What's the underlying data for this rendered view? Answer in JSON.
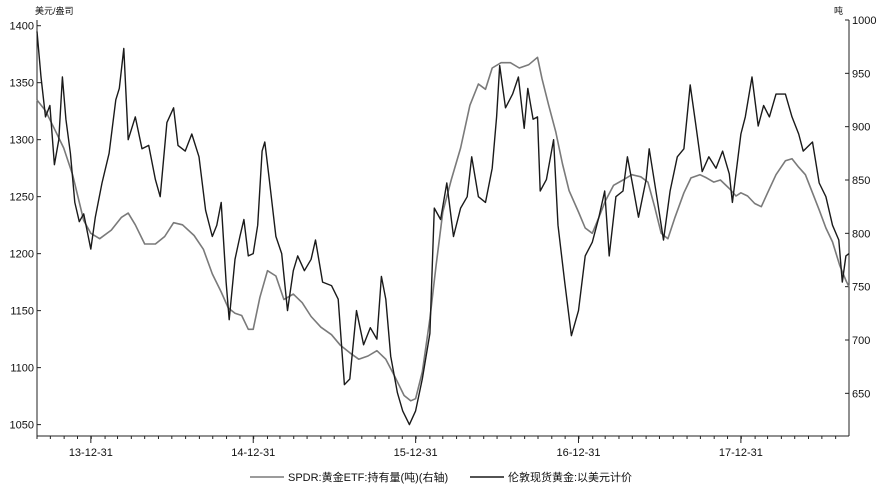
{
  "chart_data": {
    "type": "line",
    "left_unit": "美元/盎司",
    "right_unit": "吨",
    "left_ylim": [
      1040,
      1405
    ],
    "right_ylim": [
      610,
      1000
    ],
    "left_ticks": [
      1050,
      1100,
      1150,
      1200,
      1250,
      1300,
      1350,
      1400
    ],
    "right_ticks": [
      650,
      700,
      750,
      800,
      850,
      900,
      950,
      1000
    ],
    "x_ticks": [
      "13-12-31",
      "14-12-31",
      "15-12-31",
      "16-12-31",
      "17-12-31"
    ],
    "x_tick_positions": [
      "2013-12-31",
      "2014-12-31",
      "2015-12-31",
      "2016-12-31",
      "2017-12-31"
    ],
    "x_range": [
      "2013-09-01",
      "2018-08-31"
    ],
    "grid": false,
    "legend_placement": "bottom",
    "series": [
      {
        "name": "SPDR:黄金ETF:持有量(吨)(右轴)",
        "axis": "right",
        "color": "#7a7a7a",
        "points": [
          [
            "2013-09-01",
            925
          ],
          [
            "2013-09-20",
            915
          ],
          [
            "2013-10-10",
            898
          ],
          [
            "2013-10-31",
            880
          ],
          [
            "2013-11-20",
            855
          ],
          [
            "2013-12-15",
            812
          ],
          [
            "2013-12-31",
            800
          ],
          [
            "2014-01-20",
            795
          ],
          [
            "2014-02-15",
            803
          ],
          [
            "2014-03-10",
            815
          ],
          [
            "2014-03-25",
            819
          ],
          [
            "2014-04-10",
            808
          ],
          [
            "2014-05-01",
            790
          ],
          [
            "2014-05-25",
            790
          ],
          [
            "2014-06-15",
            797
          ],
          [
            "2014-07-05",
            810
          ],
          [
            "2014-07-25",
            808
          ],
          [
            "2014-08-20",
            798
          ],
          [
            "2014-09-10",
            785
          ],
          [
            "2014-09-30",
            762
          ],
          [
            "2014-10-20",
            745
          ],
          [
            "2014-11-05",
            730
          ],
          [
            "2014-11-20",
            725
          ],
          [
            "2014-12-05",
            723
          ],
          [
            "2014-12-20",
            710
          ],
          [
            "2014-12-31",
            710
          ],
          [
            "2015-01-15",
            740
          ],
          [
            "2015-02-01",
            765
          ],
          [
            "2015-02-20",
            760
          ],
          [
            "2015-03-10",
            738
          ],
          [
            "2015-03-31",
            743
          ],
          [
            "2015-04-20",
            735
          ],
          [
            "2015-05-10",
            722
          ],
          [
            "2015-06-01",
            712
          ],
          [
            "2015-06-25",
            705
          ],
          [
            "2015-07-15",
            695
          ],
          [
            "2015-08-05",
            688
          ],
          [
            "2015-08-25",
            682
          ],
          [
            "2015-09-15",
            685
          ],
          [
            "2015-10-05",
            690
          ],
          [
            "2015-10-25",
            682
          ],
          [
            "2015-11-15",
            665
          ],
          [
            "2015-12-05",
            648
          ],
          [
            "2015-12-20",
            643
          ],
          [
            "2015-12-31",
            645
          ],
          [
            "2016-01-15",
            670
          ],
          [
            "2016-02-01",
            720
          ],
          [
            "2016-02-15",
            770
          ],
          [
            "2016-03-01",
            820
          ],
          [
            "2016-03-20",
            850
          ],
          [
            "2016-04-10",
            880
          ],
          [
            "2016-05-01",
            920
          ],
          [
            "2016-05-20",
            940
          ],
          [
            "2016-06-05",
            935
          ],
          [
            "2016-06-20",
            955
          ],
          [
            "2016-07-10",
            960
          ],
          [
            "2016-07-31",
            960
          ],
          [
            "2016-08-20",
            955
          ],
          [
            "2016-09-10",
            958
          ],
          [
            "2016-09-30",
            965
          ],
          [
            "2016-10-10",
            945
          ],
          [
            "2016-10-25",
            920
          ],
          [
            "2016-11-10",
            895
          ],
          [
            "2016-11-25",
            865
          ],
          [
            "2016-12-10",
            840
          ],
          [
            "2016-12-31",
            820
          ],
          [
            "2017-01-15",
            805
          ],
          [
            "2017-01-31",
            800
          ],
          [
            "2017-02-15",
            815
          ],
          [
            "2017-03-01",
            830
          ],
          [
            "2017-03-20",
            845
          ],
          [
            "2017-04-10",
            850
          ],
          [
            "2017-04-30",
            855
          ],
          [
            "2017-05-20",
            853
          ],
          [
            "2017-06-05",
            848
          ],
          [
            "2017-06-20",
            825
          ],
          [
            "2017-07-05",
            800
          ],
          [
            "2017-07-20",
            795
          ],
          [
            "2017-08-05",
            815
          ],
          [
            "2017-08-25",
            838
          ],
          [
            "2017-09-10",
            852
          ],
          [
            "2017-09-30",
            855
          ],
          [
            "2017-10-15",
            852
          ],
          [
            "2017-10-31",
            848
          ],
          [
            "2017-11-15",
            850
          ],
          [
            "2017-12-05",
            842
          ],
          [
            "2017-12-20",
            835
          ],
          [
            "2017-12-31",
            838
          ],
          [
            "2018-01-15",
            835
          ],
          [
            "2018-01-31",
            828
          ],
          [
            "2018-02-15",
            825
          ],
          [
            "2018-03-01",
            838
          ],
          [
            "2018-03-20",
            855
          ],
          [
            "2018-04-10",
            868
          ],
          [
            "2018-04-25",
            870
          ],
          [
            "2018-05-10",
            862
          ],
          [
            "2018-05-25",
            855
          ],
          [
            "2018-06-10",
            838
          ],
          [
            "2018-06-25",
            822
          ],
          [
            "2018-07-10",
            805
          ],
          [
            "2018-07-25",
            792
          ],
          [
            "2018-08-10",
            770
          ],
          [
            "2018-08-25",
            755
          ],
          [
            "2018-08-31",
            750
          ]
        ]
      },
      {
        "name": "伦敦现货黄金:以美元计价",
        "axis": "left",
        "color": "#1a1a1a",
        "points": [
          [
            "2013-09-01",
            1395
          ],
          [
            "2013-09-10",
            1355
          ],
          [
            "2013-09-20",
            1320
          ],
          [
            "2013-09-30",
            1330
          ],
          [
            "2013-10-10",
            1278
          ],
          [
            "2013-10-20",
            1300
          ],
          [
            "2013-10-28",
            1355
          ],
          [
            "2013-11-05",
            1318
          ],
          [
            "2013-11-15",
            1288
          ],
          [
            "2013-11-25",
            1245
          ],
          [
            "2013-12-05",
            1228
          ],
          [
            "2013-12-15",
            1235
          ],
          [
            "2013-12-31",
            1204
          ],
          [
            "2014-01-10",
            1232
          ],
          [
            "2014-01-25",
            1262
          ],
          [
            "2014-02-10",
            1288
          ],
          [
            "2014-02-25",
            1335
          ],
          [
            "2014-03-05",
            1345
          ],
          [
            "2014-03-15",
            1380
          ],
          [
            "2014-03-25",
            1300
          ],
          [
            "2014-04-10",
            1320
          ],
          [
            "2014-04-25",
            1292
          ],
          [
            "2014-05-10",
            1295
          ],
          [
            "2014-05-25",
            1265
          ],
          [
            "2014-06-05",
            1250
          ],
          [
            "2014-06-20",
            1315
          ],
          [
            "2014-07-05",
            1328
          ],
          [
            "2014-07-15",
            1295
          ],
          [
            "2014-07-31",
            1290
          ],
          [
            "2014-08-15",
            1305
          ],
          [
            "2014-08-31",
            1285
          ],
          [
            "2014-09-15",
            1238
          ],
          [
            "2014-09-30",
            1215
          ],
          [
            "2014-10-10",
            1225
          ],
          [
            "2014-10-20",
            1245
          ],
          [
            "2014-10-31",
            1175
          ],
          [
            "2014-11-07",
            1142
          ],
          [
            "2014-11-20",
            1195
          ],
          [
            "2014-12-01",
            1215
          ],
          [
            "2014-12-10",
            1230
          ],
          [
            "2014-12-20",
            1198
          ],
          [
            "2014-12-31",
            1200
          ],
          [
            "2015-01-10",
            1225
          ],
          [
            "2015-01-20",
            1290
          ],
          [
            "2015-01-26",
            1298
          ],
          [
            "2015-02-05",
            1265
          ],
          [
            "2015-02-20",
            1215
          ],
          [
            "2015-03-05",
            1200
          ],
          [
            "2015-03-18",
            1150
          ],
          [
            "2015-03-31",
            1185
          ],
          [
            "2015-04-10",
            1198
          ],
          [
            "2015-04-25",
            1185
          ],
          [
            "2015-05-10",
            1195
          ],
          [
            "2015-05-20",
            1212
          ],
          [
            "2015-06-05",
            1175
          ],
          [
            "2015-06-25",
            1172
          ],
          [
            "2015-07-10",
            1160
          ],
          [
            "2015-07-24",
            1085
          ],
          [
            "2015-08-05",
            1090
          ],
          [
            "2015-08-20",
            1150
          ],
          [
            "2015-09-05",
            1120
          ],
          [
            "2015-09-20",
            1135
          ],
          [
            "2015-10-05",
            1125
          ],
          [
            "2015-10-15",
            1180
          ],
          [
            "2015-10-25",
            1160
          ],
          [
            "2015-11-05",
            1110
          ],
          [
            "2015-11-20",
            1078
          ],
          [
            "2015-12-02",
            1062
          ],
          [
            "2015-12-17",
            1050
          ],
          [
            "2015-12-31",
            1062
          ],
          [
            "2016-01-15",
            1090
          ],
          [
            "2016-02-01",
            1130
          ],
          [
            "2016-02-11",
            1240
          ],
          [
            "2016-02-25",
            1230
          ],
          [
            "2016-03-10",
            1262
          ],
          [
            "2016-03-25",
            1215
          ],
          [
            "2016-04-10",
            1240
          ],
          [
            "2016-04-25",
            1250
          ],
          [
            "2016-05-05",
            1285
          ],
          [
            "2016-05-20",
            1250
          ],
          [
            "2016-06-05",
            1245
          ],
          [
            "2016-06-20",
            1275
          ],
          [
            "2016-06-30",
            1320
          ],
          [
            "2016-07-07",
            1365
          ],
          [
            "2016-07-20",
            1328
          ],
          [
            "2016-08-05",
            1340
          ],
          [
            "2016-08-18",
            1355
          ],
          [
            "2016-08-31",
            1310
          ],
          [
            "2016-09-08",
            1345
          ],
          [
            "2016-09-20",
            1318
          ],
          [
            "2016-09-30",
            1320
          ],
          [
            "2016-10-06",
            1255
          ],
          [
            "2016-10-20",
            1265
          ],
          [
            "2016-11-05",
            1300
          ],
          [
            "2016-11-15",
            1225
          ],
          [
            "2016-11-30",
            1175
          ],
          [
            "2016-12-15",
            1128
          ],
          [
            "2016-12-31",
            1150
          ],
          [
            "2017-01-15",
            1198
          ],
          [
            "2017-01-31",
            1210
          ],
          [
            "2017-02-15",
            1232
          ],
          [
            "2017-02-28",
            1255
          ],
          [
            "2017-03-10",
            1198
          ],
          [
            "2017-03-25",
            1250
          ],
          [
            "2017-04-10",
            1255
          ],
          [
            "2017-04-20",
            1285
          ],
          [
            "2017-05-01",
            1262
          ],
          [
            "2017-05-15",
            1232
          ],
          [
            "2017-06-01",
            1265
          ],
          [
            "2017-06-08",
            1292
          ],
          [
            "2017-06-25",
            1250
          ],
          [
            "2017-07-10",
            1212
          ],
          [
            "2017-07-25",
            1255
          ],
          [
            "2017-08-10",
            1285
          ],
          [
            "2017-08-25",
            1292
          ],
          [
            "2017-09-08",
            1348
          ],
          [
            "2017-09-20",
            1315
          ],
          [
            "2017-10-05",
            1272
          ],
          [
            "2017-10-20",
            1285
          ],
          [
            "2017-11-05",
            1275
          ],
          [
            "2017-11-20",
            1290
          ],
          [
            "2017-12-05",
            1270
          ],
          [
            "2017-12-12",
            1245
          ],
          [
            "2017-12-31",
            1305
          ],
          [
            "2018-01-10",
            1320
          ],
          [
            "2018-01-25",
            1355
          ],
          [
            "2018-02-08",
            1312
          ],
          [
            "2018-02-20",
            1330
          ],
          [
            "2018-03-05",
            1320
          ],
          [
            "2018-03-20",
            1340
          ],
          [
            "2018-04-10",
            1340
          ],
          [
            "2018-04-25",
            1320
          ],
          [
            "2018-05-10",
            1305
          ],
          [
            "2018-05-20",
            1290
          ],
          [
            "2018-06-10",
            1298
          ],
          [
            "2018-06-25",
            1262
          ],
          [
            "2018-07-10",
            1250
          ],
          [
            "2018-07-25",
            1225
          ],
          [
            "2018-08-08",
            1212
          ],
          [
            "2018-08-16",
            1175
          ],
          [
            "2018-08-24",
            1198
          ],
          [
            "2018-08-31",
            1200
          ]
        ]
      }
    ]
  }
}
